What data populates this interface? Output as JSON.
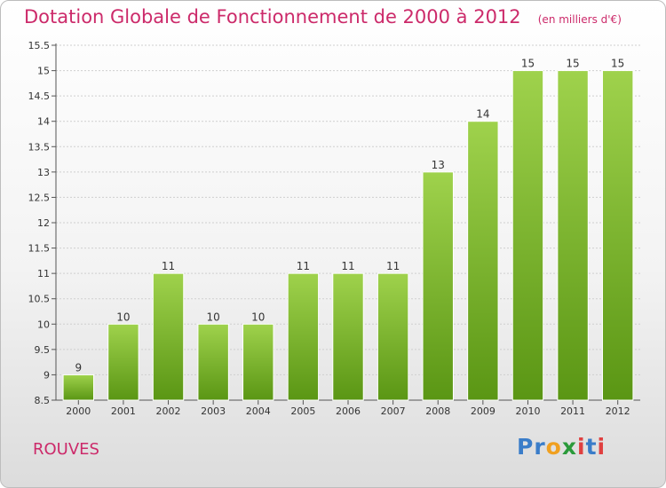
{
  "title": "Dotation Globale de Fonctionnement de 2000 à 2012",
  "subtitle": "(en milliers d'€)",
  "location": "ROUVES",
  "logo": {
    "text": "Proxiti",
    "letters": [
      {
        "ch": "P",
        "color": "#3a7dc9"
      },
      {
        "ch": "r",
        "color": "#3a7dc9"
      },
      {
        "ch": "o",
        "color": "#f0a020"
      },
      {
        "ch": "x",
        "color": "#2a9a3a"
      },
      {
        "ch": "i",
        "color": "#e04040"
      },
      {
        "ch": "t",
        "color": "#3a7dc9"
      },
      {
        "ch": "i",
        "color": "#e04040"
      }
    ]
  },
  "colors": {
    "title": "#cc2a6a",
    "bar_top": "#9fd24c",
    "bar_bottom": "#5a9614",
    "grid": "#cfcfcf",
    "axis": "#555555"
  },
  "chart_data": {
    "type": "bar",
    "title": "Dotation Globale de Fonctionnement de 2000 à 2012",
    "subtitle": "(en milliers d'€)",
    "categories": [
      "2000",
      "2001",
      "2002",
      "2003",
      "2004",
      "2005",
      "2006",
      "2007",
      "2008",
      "2009",
      "2010",
      "2011",
      "2012"
    ],
    "values": [
      9,
      10,
      11,
      10,
      10,
      11,
      11,
      11,
      13,
      14,
      15,
      15,
      15
    ],
    "data_labels": [
      "9",
      "10",
      "11",
      "10",
      "10",
      "11",
      "11",
      "11",
      "13",
      "14",
      "15",
      "15",
      "15"
    ],
    "ylim": [
      8.5,
      15.5
    ],
    "yticks": [
      "8.5",
      "9",
      "9.5",
      "10",
      "10.5",
      "11",
      "11.5",
      "12",
      "12.5",
      "13",
      "13.5",
      "14",
      "14.5",
      "15",
      "15.5"
    ],
    "grid": true,
    "legend": "none"
  }
}
